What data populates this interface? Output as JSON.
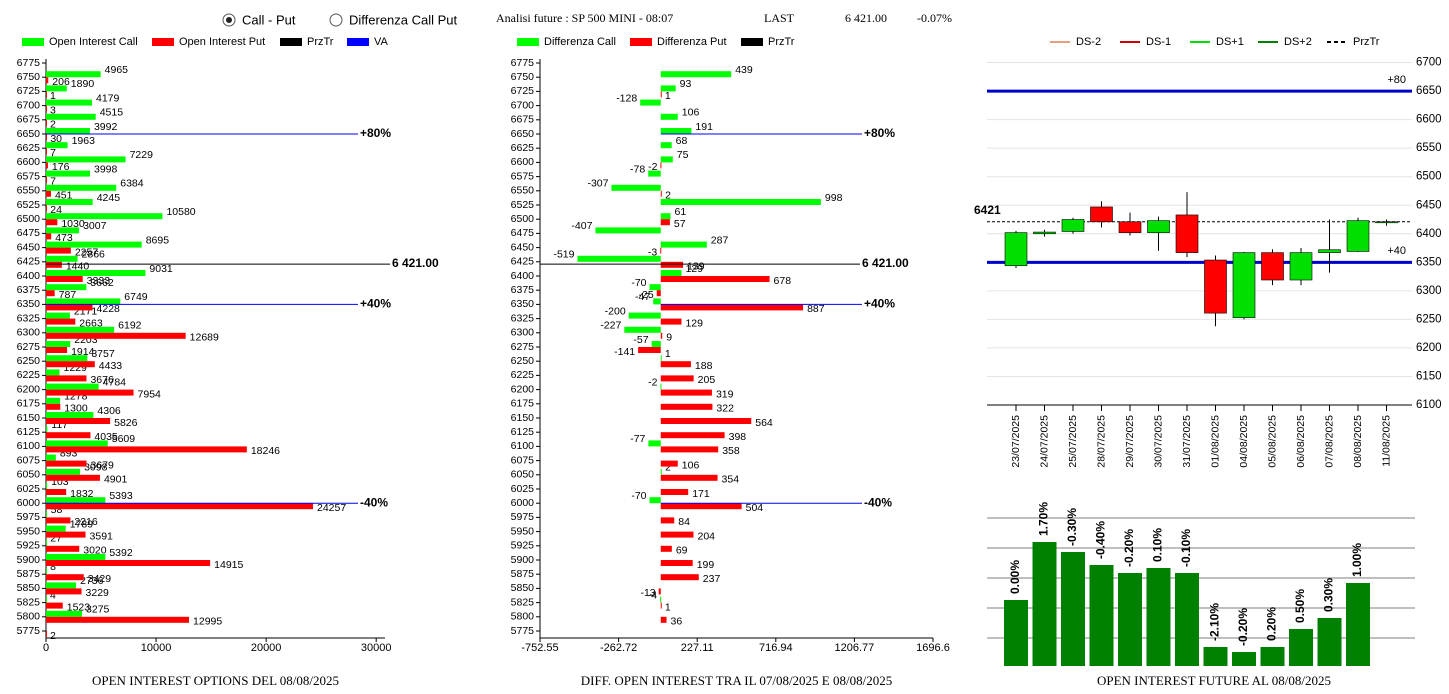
{
  "header": {
    "options": [
      "Call - Put",
      "Differenza Call Put"
    ],
    "selected": 0,
    "title": "Analisi future : SP 500 MINI - 08:07",
    "last_label": "LAST",
    "last": "6 421.00",
    "change": "-0.07%"
  },
  "chart_data": [
    {
      "type": "hbar",
      "title": "OPEN INTEREST OPTIONS DEL 08/08/2025",
      "categories": [
        6775,
        6750,
        6725,
        6700,
        6675,
        6650,
        6625,
        6600,
        6575,
        6550,
        6525,
        6500,
        6475,
        6450,
        6425,
        6400,
        6375,
        6350,
        6325,
        6300,
        6275,
        6250,
        6225,
        6200,
        6175,
        6150,
        6125,
        6100,
        6075,
        6050,
        6025,
        6000,
        5975,
        5950,
        5925,
        5900,
        5875,
        5850,
        5825,
        5800,
        5775
      ],
      "series": [
        {
          "name": "Open Interest Call",
          "color": "#00ff00",
          "values": [
            null,
            4965,
            1890,
            4179,
            4515,
            3992,
            1963,
            7229,
            3998,
            6384,
            4245,
            10580,
            3007,
            8695,
            2866,
            9031,
            3662,
            6749,
            2171,
            6192,
            2203,
            3757,
            1229,
            4784,
            1278,
            4306,
            117,
            5609,
            893,
            3098,
            103,
            5393,
            58,
            1789,
            27,
            5392,
            8,
            2736,
            4,
            3275,
            null
          ]
        },
        {
          "name": "Open Interest Put",
          "color": "#ff0000",
          "values": [
            null,
            206,
            1,
            3,
            2,
            30,
            7,
            176,
            7,
            451,
            24,
            1030,
            473,
            2257,
            1440,
            3333,
            787,
            4228,
            2663,
            12689,
            1914,
            4433,
            3676,
            7954,
            1300,
            5826,
            4035,
            18246,
            3679,
            4901,
            1832,
            24257,
            2216,
            3591,
            3020,
            14915,
            3429,
            3229,
            1523,
            12995,
            2
          ]
        }
      ],
      "overlays": [
        {
          "name": "PrzTr",
          "color": "#000000"
        },
        {
          "name": "VA",
          "color": "#0000ff"
        }
      ],
      "przTr": {
        "value": 6421,
        "label": "6 421.00"
      },
      "va": [
        {
          "value": 6650,
          "label": "+80%"
        },
        {
          "value": 6350,
          "label": "+40%"
        },
        {
          "value": 6000,
          "label": "-40%"
        }
      ],
      "xlim": [
        0,
        30800
      ],
      "xticks": [
        0,
        10000,
        20000,
        30000
      ]
    },
    {
      "type": "hbar",
      "title": "DIFF. OPEN INTEREST TRA IL 07/08/2025 E 08/08/2025",
      "categories": [
        6775,
        6750,
        6725,
        6700,
        6675,
        6650,
        6625,
        6600,
        6575,
        6550,
        6525,
        6500,
        6475,
        6450,
        6425,
        6400,
        6375,
        6350,
        6325,
        6300,
        6275,
        6250,
        6225,
        6200,
        6175,
        6150,
        6125,
        6100,
        6075,
        6050,
        6025,
        6000,
        5975,
        5950,
        5925,
        5900,
        5875,
        5850,
        5825,
        5800,
        5775
      ],
      "series": [
        {
          "name": "Differenza Call",
          "color": "#00ff00",
          "values": [
            null,
            439,
            93,
            -128,
            106,
            191,
            68,
            75,
            -78,
            -307,
            998,
            61,
            -407,
            287,
            -519,
            129,
            -70,
            -47,
            -200,
            -227,
            -57,
            1,
            null,
            -2,
            null,
            null,
            null,
            -77,
            null,
            2,
            null,
            -70,
            null,
            null,
            null,
            null,
            null,
            null,
            -4,
            null,
            null
          ]
        },
        {
          "name": "Differenza Put",
          "color": "#ff0000",
          "values": [
            null,
            null,
            1,
            null,
            null,
            null,
            null,
            -2,
            null,
            2,
            null,
            57,
            null,
            -3,
            139,
            678,
            -25,
            887,
            129,
            9,
            -141,
            188,
            205,
            319,
            322,
            564,
            398,
            358,
            106,
            354,
            171,
            504,
            84,
            204,
            69,
            199,
            237,
            -13,
            1,
            36,
            null
          ]
        }
      ],
      "overlays": [
        {
          "name": "PrzTr",
          "color": "#000000"
        }
      ],
      "va_color": "#0000ff",
      "przTr": {
        "value": 6421,
        "label": "6 421.00"
      },
      "va": [
        {
          "value": 6650,
          "label": "+80%"
        },
        {
          "value": 6350,
          "label": "+40%"
        },
        {
          "value": 6000,
          "label": "-40%"
        }
      ],
      "xlim": [
        -752.55,
        1696.6
      ],
      "xticks": [
        -752.55,
        -262.72,
        227.11,
        716.94,
        1206.77,
        1696.6
      ]
    },
    {
      "type": "candlestick",
      "legend": [
        {
          "name": "DS-2",
          "color": "#e8a07c"
        },
        {
          "name": "DS-1",
          "color": "#d00000"
        },
        {
          "name": "DS+1",
          "color": "#00e000"
        },
        {
          "name": "DS+2",
          "color": "#008000"
        },
        {
          "name": "PrzTr",
          "color": "#000000",
          "dash": true
        }
      ],
      "categories": [
        "23/07/2025",
        "24/07/2025",
        "25/07/2025",
        "28/07/2025",
        "29/07/2025",
        "30/07/2025",
        "31/07/2025",
        "01/08/2025",
        "04/08/2025",
        "05/08/2025",
        "06/08/2025",
        "07/08/2025",
        "08/08/2025",
        "11/08/2025"
      ],
      "open": [
        6344,
        6400,
        6404,
        6447,
        6421,
        6402,
        6433,
        6354,
        6253,
        6367,
        6319,
        6367,
        6369,
        6420
      ],
      "high": [
        6405,
        6407,
        6428,
        6457,
        6437,
        6430,
        6473,
        6362,
        6368,
        6373,
        6375,
        6425,
        6428,
        6425
      ],
      "low": [
        6340,
        6395,
        6400,
        6411,
        6397,
        6370,
        6359,
        6238,
        6250,
        6310,
        6310,
        6332,
        6368,
        6414
      ],
      "close": [
        6402,
        6403,
        6425,
        6421,
        6402,
        6423,
        6367,
        6261,
        6367,
        6319,
        6367,
        6372,
        6423,
        6421
      ],
      "up_color": "#00e000",
      "down_color": "#ff0000",
      "przTr": 6421,
      "levels": [
        {
          "value": 6650,
          "label": "+80"
        },
        {
          "value": 6350,
          "label": "+40"
        }
      ],
      "level_color": "#0000cc",
      "ylim": [
        6100,
        6722
      ],
      "yticks": [
        6100,
        6150,
        6200,
        6250,
        6300,
        6350,
        6400,
        6450,
        6500,
        6550,
        6600,
        6650,
        6700
      ],
      "grid": true
    },
    {
      "type": "bar",
      "title": "OPEN INTEREST FUTURE AL 08/08/2025",
      "color": "#008000",
      "values": [
        66,
        124,
        114,
        101,
        93,
        98,
        93,
        19,
        14,
        19,
        37,
        48,
        83
      ],
      "bar_labels": [
        "0.00%",
        "1.70%",
        "-0.30%",
        "-0.40%",
        "-0.20%",
        "0.10%",
        "-0.10%",
        "-2.10%",
        "-0.20%",
        "0.20%",
        "0.50%",
        "0.30%",
        "1.00%"
      ],
      "ylim": [
        0,
        154
      ],
      "yticks": [
        28,
        58,
        88,
        118,
        148
      ],
      "grid": true
    }
  ]
}
